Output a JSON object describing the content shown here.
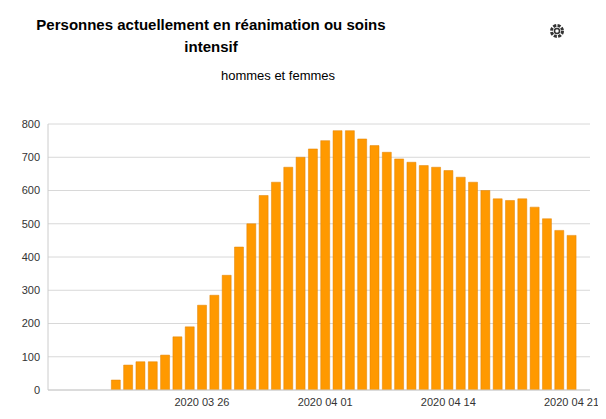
{
  "chart_data": {
    "type": "bar",
    "title": "Personnes actuellement en réanimation ou soins intensif",
    "subtitle": "hommes et femmes",
    "categories": [
      null,
      null,
      null,
      null,
      null,
      null,
      null,
      null,
      null,
      null,
      null,
      null,
      "2020 03 26",
      null,
      null,
      null,
      null,
      null,
      null,
      null,
      null,
      null,
      "2020 04 01",
      null,
      null,
      null,
      null,
      null,
      null,
      null,
      null,
      null,
      "2020 04 14",
      null,
      null,
      null,
      null,
      null,
      null,
      null,
      null,
      null,
      "2020 04 21",
      null
    ],
    "values": [
      null,
      null,
      null,
      null,
      null,
      30,
      75,
      85,
      85,
      105,
      160,
      190,
      255,
      285,
      345,
      430,
      500,
      585,
      625,
      670,
      700,
      725,
      750,
      780,
      780,
      755,
      735,
      715,
      695,
      685,
      675,
      670,
      660,
      640,
      625,
      600,
      575,
      570,
      575,
      550,
      515,
      480,
      465,
      null
    ],
    "color": "#ff9900",
    "ylim": [
      0,
      800
    ],
    "yticks": [
      0,
      100,
      200,
      300,
      400,
      500,
      600,
      700,
      800
    ],
    "grid": true
  }
}
